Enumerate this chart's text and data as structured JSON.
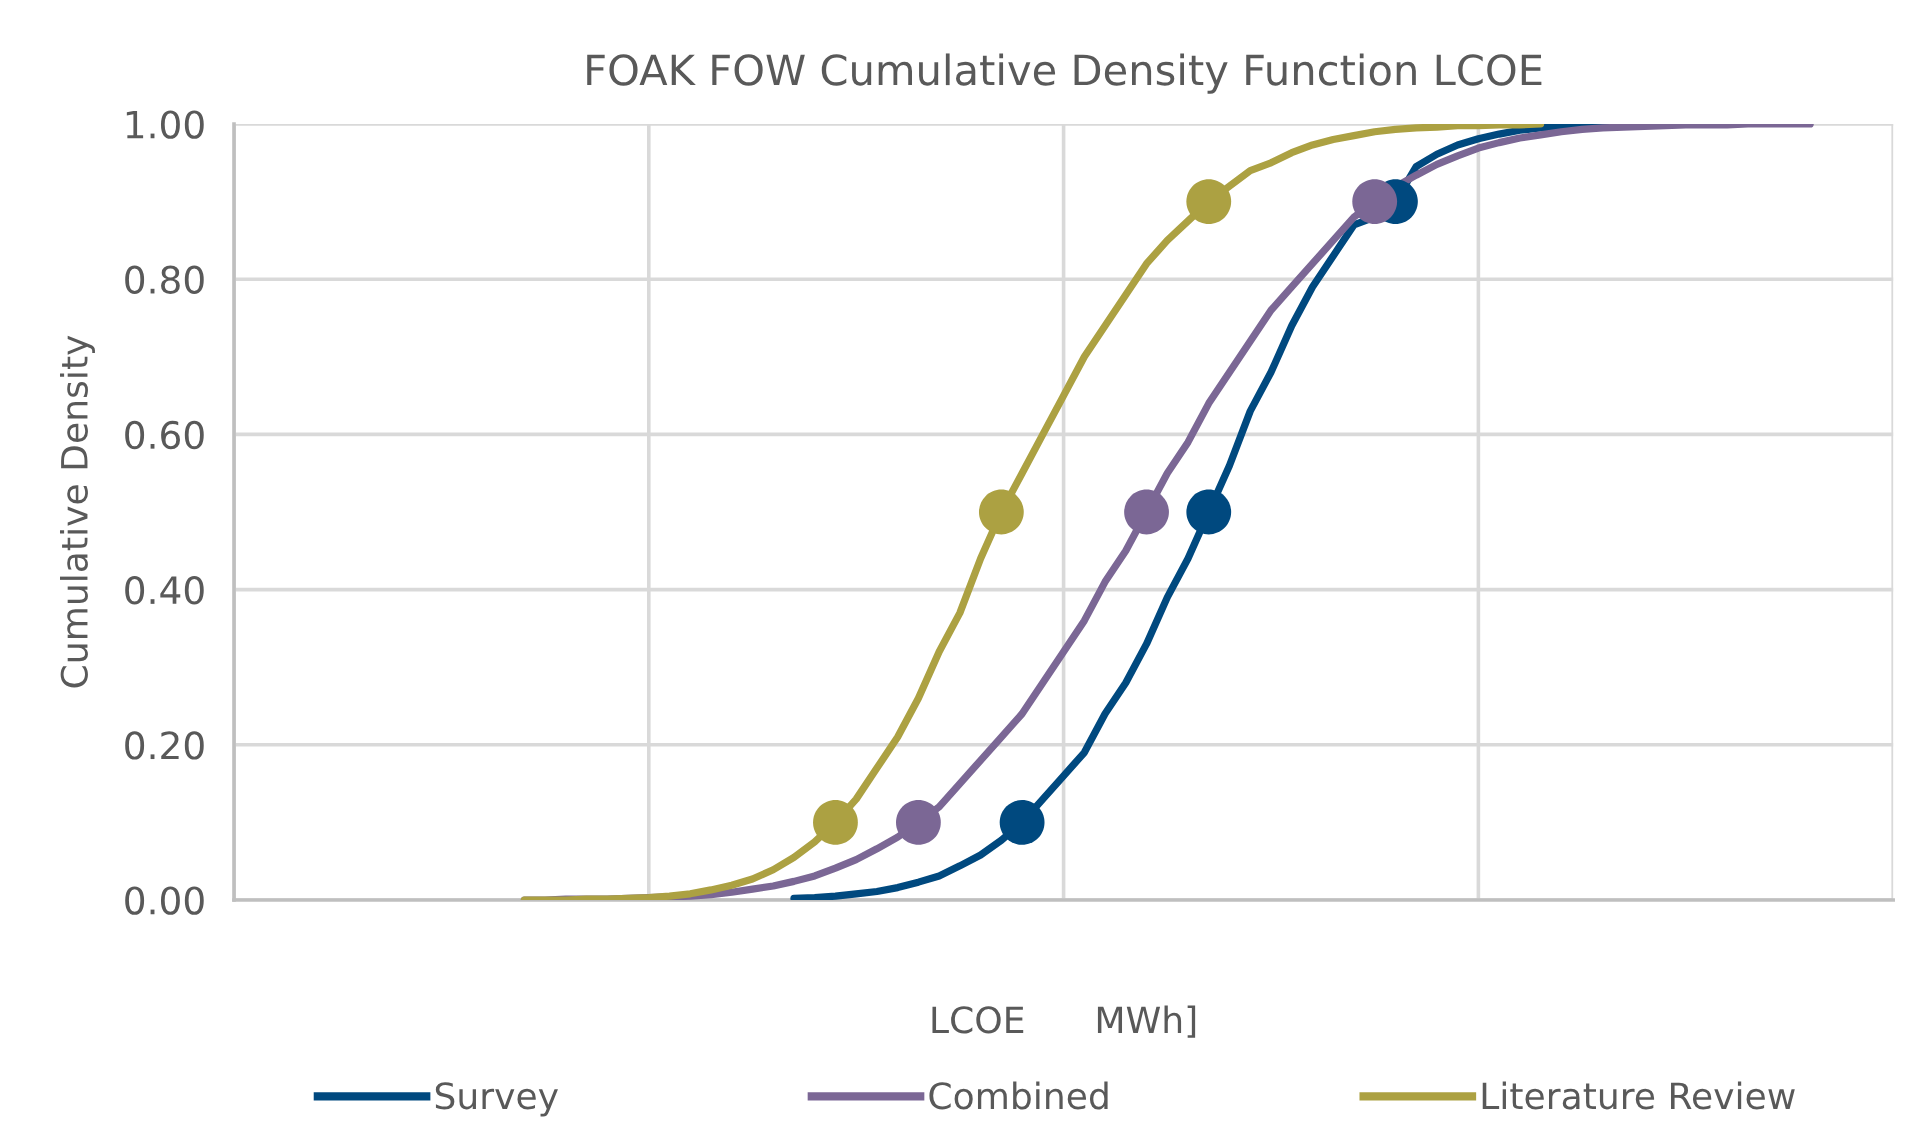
{
  "chart_data": {
    "type": "line",
    "title": "FOAK FOW Cumulative Density Function LCOE",
    "xlabel": "LCOE      MWh]",
    "ylabel": "Cumulative Density",
    "categories": [
      null,
      null,
      null,
      null,
      null,
      null,
      null,
      null,
      null,
      null,
      null,
      null,
      null,
      null,
      null,
      null,
      null,
      null,
      null,
      null,
      null,
      null,
      null,
      null,
      null,
      null,
      null,
      null,
      null,
      null,
      null,
      null,
      null,
      null,
      null,
      null,
      null,
      null,
      null,
      null,
      null,
      null,
      null,
      null,
      null,
      null,
      null,
      null,
      null,
      null,
      null,
      null,
      null,
      null,
      null,
      null,
      null,
      null,
      null,
      null,
      null,
      null,
      null,
      null,
      null,
      null,
      null,
      null,
      null,
      null,
      null,
      null,
      null,
      null,
      null,
      null,
      null,
      null,
      null,
      null,
      null
    ],
    "ylim": [
      0,
      1
    ],
    "yticks": [
      {
        "value": 0,
        "label": "0.00"
      },
      {
        "value": 0.2,
        "label": "0.20"
      },
      {
        "value": 0.4,
        "label": "0.40"
      },
      {
        "value": 0.6,
        "label": "0.60"
      },
      {
        "value": 0.8,
        "label": "0.80"
      },
      {
        "value": 1,
        "label": "1.00"
      }
    ],
    "grid": true,
    "legend": "bottom",
    "marker": "none",
    "line_style": "solid",
    "series": [
      {
        "name": "Survey",
        "color": "#00497f",
        "values": [
          null,
          null,
          null,
          null,
          null,
          null,
          null,
          null,
          null,
          null,
          null,
          null,
          null,
          null,
          null,
          null,
          null,
          null,
          null,
          null,
          null,
          null,
          null,
          null,
          null,
          null,
          null,
          0.002,
          0.003,
          0.005,
          0.008,
          0.011,
          0.016,
          0.023,
          0.031,
          0.044,
          0.058,
          0.077,
          0.1,
          0.13,
          0.16,
          0.19,
          0.24,
          0.28,
          0.33,
          0.39,
          0.44,
          0.5,
          0.56,
          0.63,
          0.68,
          0.74,
          0.79,
          0.83,
          0.87,
          0.88,
          0.9,
          0.945,
          0.961,
          0.973,
          0.981,
          0.987,
          0.992,
          0.995,
          0.997,
          0.998,
          0.999,
          0.999,
          1.0,
          1.0,
          null,
          null,
          null,
          null,
          null,
          null,
          null,
          null,
          null,
          null,
          null
        ]
      },
      {
        "name": "Combined",
        "color": "#7b6795",
        "values": [
          null,
          null,
          null,
          null,
          null,
          null,
          null,
          null,
          null,
          null,
          null,
          null,
          null,
          null,
          0,
          0,
          0.001,
          0.001,
          0.001,
          0.002,
          0.003,
          0.004,
          0.005,
          0.007,
          0.01,
          0.014,
          0.018,
          0.024,
          0.031,
          0.041,
          0.052,
          0.066,
          0.081,
          0.1,
          0.12,
          0.15,
          0.18,
          0.21,
          0.24,
          0.28,
          0.32,
          0.36,
          0.41,
          0.45,
          0.5,
          0.55,
          0.59,
          0.64,
          0.68,
          0.72,
          0.76,
          0.79,
          0.82,
          0.85,
          0.88,
          0.9,
          0.919,
          0.934,
          0.948,
          0.959,
          0.969,
          0.976,
          0.982,
          0.986,
          0.99,
          0.993,
          0.995,
          0.996,
          0.997,
          0.998,
          0.999,
          0.999,
          0.999,
          1.0,
          1.0,
          1.0,
          1.0,
          null,
          null,
          null,
          null
        ]
      },
      {
        "name": "Literature Review",
        "color": "#aca142",
        "values": [
          null,
          null,
          null,
          null,
          null,
          null,
          null,
          null,
          null,
          null,
          null,
          null,
          null,
          null,
          0,
          0,
          0,
          0.001,
          0.001,
          0.002,
          0.003,
          0.005,
          0.008,
          0.013,
          0.019,
          0.027,
          0.039,
          0.055,
          0.075,
          0.1,
          0.13,
          0.17,
          0.21,
          0.26,
          0.32,
          0.37,
          0.44,
          0.5,
          0.55,
          0.6,
          0.65,
          0.7,
          0.74,
          0.78,
          0.82,
          0.85,
          0.875,
          0.9,
          0.92,
          0.94,
          0.95,
          0.963,
          0.973,
          0.98,
          0.985,
          0.99,
          0.993,
          0.995,
          0.996,
          0.998,
          0.998,
          0.999,
          0.999,
          1.0,
          null,
          null,
          null,
          null,
          null,
          null,
          null,
          null,
          null,
          null,
          null,
          null,
          null,
          null,
          null,
          null,
          null
        ]
      },
      {
        "type": "scatter",
        "marker": "circle",
        "color": "#00497f",
        "values": [
          null,
          null,
          null,
          null,
          null,
          null,
          null,
          null,
          null,
          null,
          null,
          null,
          null,
          null,
          null,
          null,
          null,
          null,
          null,
          null,
          null,
          null,
          null,
          null,
          null,
          null,
          null,
          null,
          null,
          null,
          null,
          null,
          null,
          null,
          null,
          null,
          null,
          null,
          0.1,
          null,
          null,
          null,
          null,
          null,
          null,
          null,
          null,
          0.5,
          null,
          null,
          null,
          null,
          null,
          null,
          null,
          null,
          0.9,
          null,
          null,
          null,
          null,
          null,
          null,
          null,
          null,
          null,
          null,
          null,
          null,
          null,
          null,
          null,
          null,
          null,
          null,
          null,
          null,
          null,
          null,
          null,
          null
        ]
      },
      {
        "type": "scatter",
        "marker": "circle",
        "color": "#7b6795",
        "values": [
          null,
          null,
          null,
          null,
          null,
          null,
          null,
          null,
          null,
          null,
          null,
          null,
          null,
          null,
          null,
          null,
          null,
          null,
          null,
          null,
          null,
          null,
          null,
          null,
          null,
          null,
          null,
          null,
          null,
          null,
          null,
          null,
          null,
          0.1,
          null,
          null,
          null,
          null,
          null,
          null,
          null,
          null,
          null,
          null,
          0.5,
          null,
          null,
          null,
          null,
          null,
          null,
          null,
          null,
          null,
          null,
          0.9,
          null,
          null,
          null,
          null,
          null,
          null,
          null,
          null,
          null,
          null,
          null,
          null,
          null,
          null,
          null,
          null,
          null,
          null,
          null,
          null,
          null,
          null,
          null,
          null,
          null
        ]
      },
      {
        "type": "scatter",
        "marker": "circle",
        "color": "#aca142",
        "values": [
          null,
          null,
          null,
          null,
          null,
          null,
          null,
          null,
          null,
          null,
          null,
          null,
          null,
          null,
          null,
          null,
          null,
          null,
          null,
          null,
          null,
          null,
          null,
          null,
          null,
          null,
          null,
          null,
          null,
          0.1,
          null,
          null,
          null,
          null,
          null,
          null,
          null,
          0.5,
          null,
          null,
          null,
          null,
          null,
          null,
          null,
          null,
          null,
          0.9,
          null,
          null,
          null,
          null,
          null,
          null,
          null,
          null,
          null,
          null,
          null,
          null,
          null,
          null,
          null,
          null,
          null,
          null,
          null,
          null,
          null,
          null,
          null,
          null,
          null,
          null,
          null,
          null,
          null,
          null,
          null,
          null,
          null
        ]
      }
    ]
  }
}
